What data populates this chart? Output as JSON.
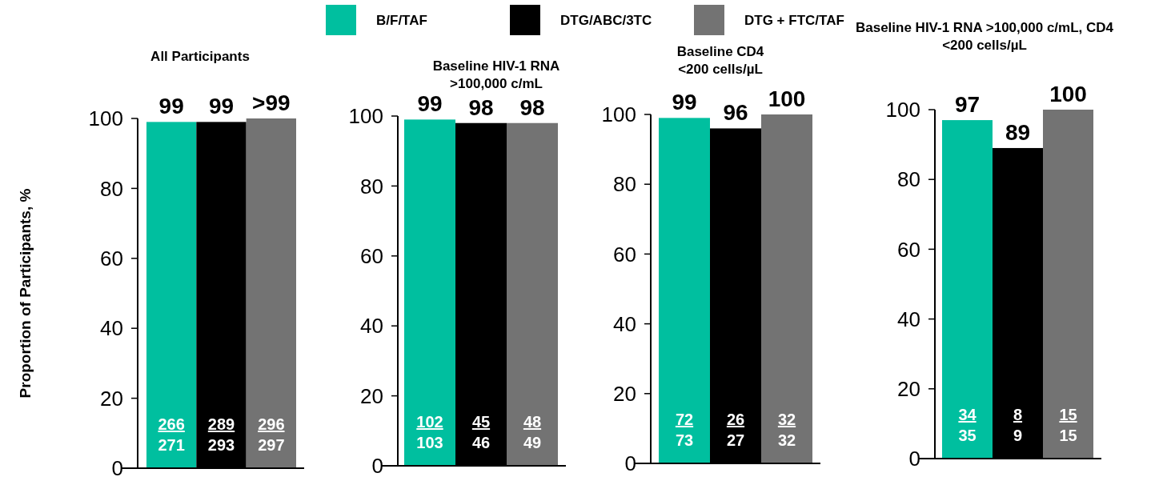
{
  "chart_data": [
    {
      "type": "bar",
      "title": "All Participants",
      "ylabel": "Proportion of Participants, %",
      "categories": [
        null
      ],
      "legend": "top",
      "ylim": [
        0,
        100
      ],
      "yticks": [
        0,
        20,
        40,
        60,
        80,
        100
      ],
      "grid": false,
      "series": [
        {
          "name": "B/F/TAF",
          "color": "#00bf9f",
          "values": [
            99
          ],
          "value_labels": [
            "99"
          ]
        },
        {
          "name": "DTG/ABC/3TC",
          "color": "#000000",
          "values": [
            99
          ],
          "value_labels": [
            "99"
          ]
        },
        {
          "name": "DTG + FTC/TAF",
          "color": "#737373",
          "values": [
            100
          ],
          "value_labels": [
            ">99"
          ]
        }
      ],
      "annotations": [
        "266",
        "271",
        "289",
        "293",
        "296",
        "297"
      ]
    },
    {
      "type": "bar",
      "title": "Baseline HIV-1 RNA\n>100,000 c/mL",
      "categories": [
        null
      ],
      "ylim": [
        0,
        100
      ],
      "yticks": [
        0,
        20,
        40,
        60,
        80,
        100
      ],
      "grid": false,
      "series": [
        {
          "color": "#00bf9f",
          "values": [
            99
          ],
          "value_labels": [
            "99"
          ]
        },
        {
          "color": "#000000",
          "values": [
            98
          ],
          "value_labels": [
            "98"
          ]
        },
        {
          "color": "#737373",
          "values": [
            98
          ],
          "value_labels": [
            "98"
          ]
        }
      ],
      "annotations": [
        "102",
        "103",
        "45",
        "46",
        "48",
        "49"
      ]
    },
    {
      "type": "bar",
      "title": "Baseline CD4\n<200 cells/µL",
      "categories": [
        null
      ],
      "ylim": [
        0,
        100
      ],
      "yticks": [
        0,
        20,
        40,
        60,
        80,
        100
      ],
      "grid": false,
      "series": [
        {
          "color": "#00bf9f",
          "values": [
            99
          ],
          "value_labels": [
            "99"
          ]
        },
        {
          "color": "#000000",
          "values": [
            96
          ],
          "value_labels": [
            "96"
          ]
        },
        {
          "color": "#737373",
          "values": [
            100
          ],
          "value_labels": [
            "100"
          ]
        }
      ],
      "annotations": [
        "72",
        "73",
        "26",
        "27",
        "32",
        "32"
      ]
    },
    {
      "type": "bar",
      "title": "Baseline HIV-1 RNA >100,000 c/mL, CD4\n<200 cells/µL",
      "categories": [
        null
      ],
      "ylim": [
        0,
        100
      ],
      "yticks": [
        0,
        20,
        40,
        60,
        80,
        100
      ],
      "grid": false,
      "series": [
        {
          "color": "#00bf9f",
          "values": [
            97
          ],
          "value_labels": [
            "97"
          ]
        },
        {
          "color": "#000000",
          "values": [
            89
          ],
          "value_labels": [
            "89"
          ]
        },
        {
          "color": "#737373",
          "values": [
            100
          ],
          "value_labels": [
            "100"
          ]
        }
      ],
      "annotations": [
        "34",
        "35",
        "8",
        "9",
        "15",
        "15"
      ]
    }
  ]
}
